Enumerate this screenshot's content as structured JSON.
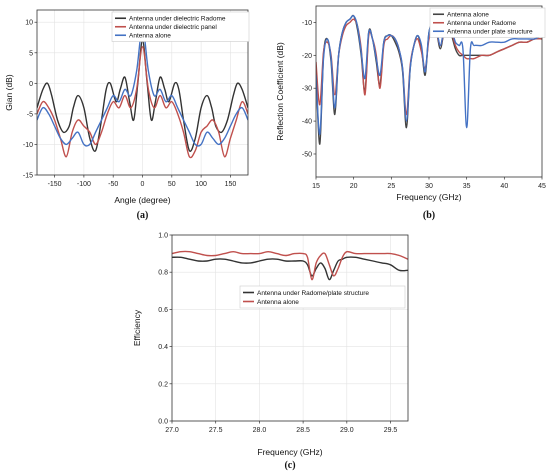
{
  "chart_data": [
    {
      "type": "line",
      "caption": "(a)",
      "title": "",
      "xlabel": "Angle (degree)",
      "ylabel": "Gian (dB)",
      "xlim": [
        -180,
        180
      ],
      "ylim": [
        -15,
        12
      ],
      "xticks": [
        -150,
        -100,
        -50,
        0,
        50,
        100,
        150
      ],
      "yticks": [
        -15,
        -10,
        -5,
        0,
        5,
        10
      ],
      "grid": true,
      "legend_position": "top-right",
      "series": [
        {
          "name": "Antenna under dielectric Radome",
          "color": "#333333",
          "x": [
            -180,
            -170,
            -162,
            -155,
            -145,
            -135,
            -125,
            -118,
            -110,
            -100,
            -90,
            -80,
            -70,
            -62,
            -55,
            -45,
            -38,
            -30,
            -22,
            -15,
            -8,
            0,
            8,
            15,
            22,
            30,
            38,
            45,
            55,
            62,
            70,
            80,
            90,
            100,
            110,
            118,
            125,
            135,
            145,
            155,
            162,
            170,
            180
          ],
          "y": [
            -4,
            -1,
            0,
            -2,
            -6,
            -8,
            -7,
            -4,
            -2,
            -4,
            -9,
            -11,
            -6,
            -1,
            0,
            -3,
            -1,
            1,
            -3,
            -6,
            0,
            7,
            0,
            -6,
            -3,
            1,
            -1,
            -3,
            0,
            -1,
            -6,
            -11,
            -9,
            -4,
            -2,
            -4,
            -7,
            -8,
            -6,
            -2,
            0,
            -1,
            -4
          ]
        },
        {
          "name": "Antenna under dielectric panel",
          "color": "#c0504d",
          "x": [
            -180,
            -170,
            -160,
            -150,
            -140,
            -130,
            -120,
            -110,
            -100,
            -90,
            -80,
            -70,
            -60,
            -50,
            -40,
            -30,
            -20,
            -10,
            0,
            10,
            20,
            30,
            40,
            50,
            60,
            70,
            80,
            90,
            100,
            110,
            120,
            130,
            140,
            150,
            160,
            170,
            180
          ],
          "y": [
            -5,
            -3,
            -4,
            -6,
            -9,
            -12,
            -8,
            -6,
            -7,
            -8,
            -10,
            -8,
            -5,
            -3,
            -4,
            -2,
            -4,
            -1,
            6,
            -1,
            -4,
            -2,
            -4,
            -3,
            -5,
            -8,
            -12,
            -11,
            -8,
            -7,
            -6,
            -8,
            -12,
            -9,
            -6,
            -3,
            -5
          ]
        },
        {
          "name": "Antenna alone",
          "color": "#4472c4",
          "x": [
            -180,
            -170,
            -160,
            -150,
            -140,
            -130,
            -120,
            -110,
            -100,
            -90,
            -80,
            -70,
            -60,
            -50,
            -40,
            -30,
            -20,
            -10,
            0,
            10,
            20,
            30,
            40,
            50,
            60,
            70,
            80,
            90,
            100,
            110,
            120,
            130,
            140,
            150,
            160,
            170,
            180
          ],
          "y": [
            -6,
            -4,
            -5,
            -7,
            -9,
            -10,
            -9,
            -8,
            -10,
            -10,
            -8,
            -6,
            -4,
            -2,
            -3,
            -1,
            -2,
            2,
            9,
            2,
            -2,
            -1,
            -3,
            -2,
            -4,
            -6,
            -8,
            -10,
            -10,
            -8,
            -9,
            -10,
            -9,
            -7,
            -5,
            -4,
            -6
          ]
        }
      ]
    },
    {
      "type": "line",
      "caption": "(b)",
      "title": "",
      "xlabel": "Frequency (GHz)",
      "ylabel": "Reflection Coefficient (dB)",
      "xlim": [
        15,
        45
      ],
      "ylim": [
        -57,
        -5
      ],
      "xticks": [
        15,
        20,
        25,
        30,
        35,
        40,
        45
      ],
      "yticks": [
        -50,
        -40,
        -30,
        -20,
        -10
      ],
      "grid": false,
      "legend_position": "top-right",
      "series": [
        {
          "name": "Antenna alone",
          "color": "#444444",
          "x": [
            15,
            15.5,
            16,
            16.5,
            17,
            17.5,
            18,
            18.5,
            19,
            19.5,
            20,
            20.5,
            21,
            21.5,
            22,
            22.5,
            23,
            23.5,
            24,
            24.5,
            25,
            25.5,
            26,
            26.5,
            27,
            27.5,
            28,
            28.5,
            29,
            29.5,
            30,
            30.5,
            31,
            31.5,
            32,
            32.5,
            33,
            33.5,
            34,
            34.5,
            35,
            35.5,
            36,
            37,
            38,
            39,
            40,
            41,
            42,
            43,
            44,
            45
          ],
          "y": [
            -24,
            -47,
            -20,
            -15,
            -22,
            -38,
            -20,
            -13,
            -10,
            -9,
            -8,
            -12,
            -20,
            -31,
            -13,
            -15,
            -22,
            -29,
            -16,
            -14,
            -14,
            -16,
            -19,
            -25,
            -42,
            -24,
            -17,
            -14,
            -18,
            -26,
            -13,
            -11,
            -13,
            -18,
            -13,
            -12,
            -14,
            -18,
            -20,
            -20,
            -20,
            -20,
            -20,
            -20,
            -20,
            -19,
            -18,
            -17,
            -16,
            -16,
            -15,
            -15
          ]
        },
        {
          "name": "Antenna under Radome",
          "color": "#c0504d",
          "x": [
            15,
            15.5,
            16,
            16.5,
            17,
            17.5,
            18,
            18.5,
            19,
            19.5,
            20,
            20.5,
            21,
            21.5,
            22,
            22.5,
            23,
            23.5,
            24,
            24.5,
            25,
            25.5,
            26,
            26.5,
            27,
            27.5,
            28,
            28.5,
            29,
            29.5,
            30,
            30.5,
            31,
            31.5,
            32,
            32.5,
            33,
            33.5,
            34,
            34.5,
            35,
            35.5,
            36,
            37,
            38,
            39,
            40,
            41,
            42,
            43,
            44,
            45
          ],
          "y": [
            -22,
            -35,
            -19,
            -16,
            -20,
            -32,
            -20,
            -14,
            -11,
            -10,
            -9,
            -11,
            -18,
            -32,
            -14,
            -15,
            -20,
            -30,
            -17,
            -15,
            -14,
            -15,
            -18,
            -24,
            -38,
            -23,
            -17,
            -15,
            -19,
            -24,
            -15,
            -12,
            -13,
            -17,
            -13,
            -12,
            -13,
            -17,
            -19,
            -20,
            -21,
            -21,
            -21,
            -20,
            -20,
            -19,
            -18,
            -17,
            -16,
            -16,
            -15,
            -15
          ]
        },
        {
          "name": "Antenna under plate structure",
          "color": "#4472c4",
          "x": [
            15,
            15.5,
            16,
            16.5,
            17,
            17.5,
            18,
            18.5,
            19,
            19.5,
            20,
            20.5,
            21,
            21.5,
            22,
            22.5,
            23,
            23.5,
            24,
            24.5,
            25,
            25.5,
            26,
            26.5,
            27,
            27.5,
            28,
            28.5,
            29,
            29.5,
            30,
            30.5,
            31,
            31.5,
            32,
            32.5,
            33,
            33.5,
            34,
            34.5,
            35,
            35.5,
            36,
            37,
            38,
            39,
            40,
            41,
            42,
            43,
            44,
            45
          ],
          "y": [
            -26,
            -44,
            -21,
            -15,
            -21,
            -36,
            -20,
            -13,
            -10,
            -9,
            -8,
            -11,
            -19,
            -27,
            -13,
            -15,
            -21,
            -26,
            -16,
            -14,
            -14,
            -15,
            -18,
            -24,
            -40,
            -24,
            -17,
            -14,
            -17,
            -25,
            -13,
            -11,
            -12,
            -17,
            -12,
            -11,
            -12,
            -16,
            -17,
            -18,
            -42,
            -18,
            -17,
            -17,
            -16,
            -16,
            -16,
            -15,
            -15,
            -15,
            -15,
            -14
          ]
        }
      ]
    },
    {
      "type": "line",
      "caption": "(c)",
      "title": "",
      "xlabel": "Frequency (GHz)",
      "ylabel": "Efficiency",
      "xlim": [
        27,
        29.7
      ],
      "ylim": [
        0,
        1
      ],
      "xticks": [
        27.0,
        27.5,
        28.0,
        28.5,
        29.0,
        29.5
      ],
      "yticks": [
        0.0,
        0.2,
        0.4,
        0.6,
        0.8,
        1.0
      ],
      "grid": true,
      "legend_position": "upper-middle",
      "series": [
        {
          "name": "Antenna under Radome/plate structure",
          "color": "#333333",
          "x": [
            27.0,
            27.1,
            27.2,
            27.3,
            27.4,
            27.5,
            27.6,
            27.7,
            27.8,
            27.9,
            28.0,
            28.1,
            28.2,
            28.3,
            28.4,
            28.5,
            28.55,
            28.6,
            28.65,
            28.7,
            28.75,
            28.8,
            28.85,
            28.9,
            28.95,
            29.0,
            29.1,
            29.2,
            29.3,
            29.4,
            29.5,
            29.6,
            29.7
          ],
          "y": [
            0.88,
            0.88,
            0.87,
            0.86,
            0.86,
            0.87,
            0.87,
            0.86,
            0.85,
            0.85,
            0.86,
            0.87,
            0.87,
            0.86,
            0.86,
            0.86,
            0.84,
            0.78,
            0.82,
            0.85,
            0.82,
            0.76,
            0.81,
            0.86,
            0.87,
            0.88,
            0.88,
            0.87,
            0.86,
            0.85,
            0.84,
            0.81,
            0.81
          ]
        },
        {
          "name": "Antenna alone",
          "color": "#c0504d",
          "x": [
            27.0,
            27.1,
            27.2,
            27.3,
            27.4,
            27.5,
            27.6,
            27.7,
            27.8,
            27.9,
            28.0,
            28.1,
            28.2,
            28.3,
            28.4,
            28.5,
            28.55,
            28.6,
            28.65,
            28.7,
            28.75,
            28.8,
            28.85,
            28.9,
            28.95,
            29.0,
            29.1,
            29.2,
            29.3,
            29.4,
            29.5,
            29.6,
            29.7
          ],
          "y": [
            0.9,
            0.91,
            0.91,
            0.9,
            0.89,
            0.89,
            0.9,
            0.91,
            0.9,
            0.9,
            0.9,
            0.91,
            0.9,
            0.89,
            0.9,
            0.9,
            0.88,
            0.76,
            0.85,
            0.89,
            0.9,
            0.84,
            0.78,
            0.82,
            0.88,
            0.91,
            0.9,
            0.9,
            0.9,
            0.9,
            0.9,
            0.89,
            0.87
          ]
        }
      ]
    }
  ]
}
